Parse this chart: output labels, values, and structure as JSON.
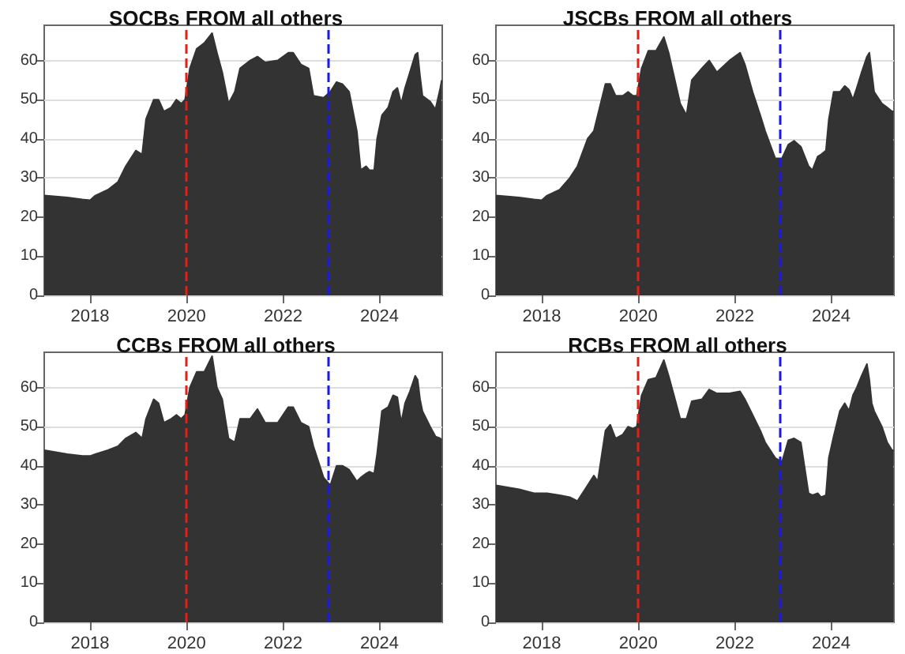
{
  "chart_data": [
    {
      "type": "area",
      "title": "SOCBs FROM all others",
      "color": "#333333",
      "xlim": [
        2017.05,
        2025.3
      ],
      "ylim": [
        0,
        69
      ],
      "xticks": [
        2018,
        2020,
        2022,
        2024
      ],
      "yticks": [
        0,
        10,
        20,
        30,
        40,
        50,
        60
      ],
      "grid": "y",
      "ref_lines": [
        {
          "axis": "x",
          "value": 2020,
          "color": "#e0201b",
          "line_style": "dashed"
        },
        {
          "axis": "x",
          "value": 2022.95,
          "color": "#1a1ae6",
          "line_style": "dashed"
        }
      ],
      "x": [
        2017.05,
        2017.53,
        2017.84,
        2018,
        2018.11,
        2018.37,
        2018.58,
        2018.74,
        2018.95,
        2019.08,
        2019.16,
        2019.32,
        2019.42,
        2019.53,
        2019.68,
        2019.79,
        2019.89,
        2019.97,
        2020.07,
        2020.21,
        2020.37,
        2020.53,
        2020.63,
        2020.74,
        2020.87,
        2021.0,
        2021.11,
        2021.32,
        2021.47,
        2021.63,
        2021.89,
        2022.11,
        2022.21,
        2022.37,
        2022.53,
        2022.63,
        2022.84,
        2022.98,
        2023.11,
        2023.23,
        2023.37,
        2023.53,
        2023.61,
        2023.72,
        2023.79,
        2023.89,
        2023.95,
        2024.05,
        2024.18,
        2024.28,
        2024.37,
        2024.45,
        2024.53,
        2024.63,
        2024.74,
        2024.79,
        2024.84,
        2024.89,
        2025.05,
        2025.16,
        2025.26,
        2025.29
      ],
      "values": [
        25.5,
        25,
        24.5,
        24.3,
        25.5,
        27,
        29,
        33,
        37,
        36,
        45,
        50,
        50,
        47,
        48,
        50,
        49,
        50,
        58,
        63,
        64.5,
        67,
        62,
        57,
        49,
        52,
        58,
        60,
        61,
        59.5,
        60,
        62,
        62,
        59,
        58,
        51,
        50.5,
        52,
        54.5,
        54,
        52,
        42,
        32,
        33,
        32,
        32,
        40,
        46,
        48,
        52,
        53,
        49,
        53,
        57,
        61.5,
        62,
        56,
        51,
        49.5,
        47.5,
        53,
        55
      ]
    },
    {
      "type": "area",
      "title": "JSCBs FROM all others",
      "color": "#333333",
      "xlim": [
        2017.05,
        2025.3
      ],
      "ylim": [
        0,
        69
      ],
      "xticks": [
        2018,
        2020,
        2022,
        2024
      ],
      "yticks": [
        0,
        10,
        20,
        30,
        40,
        50,
        60
      ],
      "grid": "y",
      "ref_lines": [
        {
          "axis": "x",
          "value": 2020,
          "color": "#e0201b",
          "line_style": "dashed"
        },
        {
          "axis": "x",
          "value": 2022.95,
          "color": "#1a1ae6",
          "line_style": "dashed"
        }
      ],
      "x": [
        2017.05,
        2017.53,
        2017.84,
        2018,
        2018.11,
        2018.37,
        2018.58,
        2018.74,
        2018.95,
        2019.08,
        2019.16,
        2019.32,
        2019.42,
        2019.53,
        2019.68,
        2019.79,
        2019.89,
        2019.97,
        2020.07,
        2020.21,
        2020.37,
        2020.53,
        2020.63,
        2020.74,
        2020.87,
        2021.0,
        2021.11,
        2021.32,
        2021.47,
        2021.63,
        2021.89,
        2022.11,
        2022.21,
        2022.37,
        2022.53,
        2022.63,
        2022.84,
        2022.98,
        2023.11,
        2023.23,
        2023.37,
        2023.53,
        2023.61,
        2023.72,
        2023.79,
        2023.89,
        2023.95,
        2024.05,
        2024.18,
        2024.28,
        2024.37,
        2024.45,
        2024.53,
        2024.63,
        2024.74,
        2024.79,
        2024.84,
        2024.89,
        2025.05,
        2025.16,
        2025.26,
        2025.29
      ],
      "values": [
        25.5,
        25,
        24.5,
        24.3,
        25.5,
        27,
        30,
        33,
        40,
        42,
        46,
        54,
        54,
        51,
        51,
        52,
        51,
        51,
        58,
        62.5,
        62.5,
        66,
        62,
        56,
        49,
        46,
        55,
        58,
        60,
        57,
        60,
        62,
        59,
        52,
        46,
        42,
        35,
        35,
        38.5,
        39.5,
        38,
        33,
        32,
        35.5,
        36,
        37,
        45,
        52,
        52,
        53.5,
        52.5,
        50,
        53,
        57,
        61,
        62,
        57,
        52,
        49,
        48,
        47,
        47
      ]
    },
    {
      "type": "area",
      "title": "CCBs FROM all others",
      "color": "#333333",
      "xlim": [
        2017.05,
        2025.3
      ],
      "ylim": [
        0,
        69
      ],
      "xticks": [
        2018,
        2020,
        2022,
        2024
      ],
      "yticks": [
        0,
        10,
        20,
        30,
        40,
        50,
        60
      ],
      "grid": "y",
      "ref_lines": [
        {
          "axis": "x",
          "value": 2020,
          "color": "#e0201b",
          "line_style": "dashed"
        },
        {
          "axis": "x",
          "value": 2022.95,
          "color": "#1a1ae6",
          "line_style": "dashed"
        }
      ],
      "x": [
        2017.05,
        2017.53,
        2017.84,
        2018,
        2018.11,
        2018.37,
        2018.58,
        2018.74,
        2018.95,
        2019.08,
        2019.16,
        2019.32,
        2019.42,
        2019.53,
        2019.68,
        2019.79,
        2019.89,
        2019.97,
        2020.07,
        2020.21,
        2020.37,
        2020.53,
        2020.63,
        2020.74,
        2020.87,
        2021.0,
        2021.11,
        2021.32,
        2021.47,
        2021.63,
        2021.89,
        2022.11,
        2022.21,
        2022.37,
        2022.53,
        2022.63,
        2022.84,
        2022.98,
        2023.11,
        2023.23,
        2023.37,
        2023.53,
        2023.61,
        2023.72,
        2023.79,
        2023.89,
        2023.95,
        2024.05,
        2024.18,
        2024.28,
        2024.37,
        2024.45,
        2024.53,
        2024.63,
        2024.74,
        2024.79,
        2024.84,
        2024.89,
        2025.05,
        2025.16,
        2025.26,
        2025.29
      ],
      "values": [
        44,
        43,
        42.5,
        42.5,
        43,
        44,
        45,
        47,
        48.5,
        47,
        52,
        57,
        56,
        51,
        52,
        53,
        52,
        53,
        60,
        64,
        64,
        68,
        60,
        57,
        47,
        46,
        52,
        52,
        54.5,
        51,
        51,
        55,
        55,
        51,
        50,
        45,
        37,
        35,
        40,
        40,
        39,
        36,
        37,
        38,
        38.5,
        38,
        43,
        54,
        55,
        58,
        57.5,
        51,
        56,
        59,
        63,
        62,
        57,
        54,
        50,
        47.5,
        47,
        46.5
      ]
    },
    {
      "type": "area",
      "title": "RCBs FROM all others",
      "color": "#333333",
      "xlim": [
        2017.05,
        2025.3
      ],
      "ylim": [
        0,
        69
      ],
      "xticks": [
        2018,
        2020,
        2022,
        2024
      ],
      "yticks": [
        0,
        10,
        20,
        30,
        40,
        50,
        60
      ],
      "grid": "y",
      "ref_lines": [
        {
          "axis": "x",
          "value": 2020,
          "color": "#e0201b",
          "line_style": "dashed"
        },
        {
          "axis": "x",
          "value": 2022.95,
          "color": "#1a1ae6",
          "line_style": "dashed"
        }
      ],
      "x": [
        2017.05,
        2017.53,
        2017.84,
        2018,
        2018.11,
        2018.37,
        2018.58,
        2018.74,
        2018.95,
        2019.08,
        2019.16,
        2019.32,
        2019.42,
        2019.53,
        2019.68,
        2019.79,
        2019.89,
        2019.97,
        2020.07,
        2020.21,
        2020.37,
        2020.53,
        2020.63,
        2020.74,
        2020.87,
        2021.0,
        2021.11,
        2021.32,
        2021.47,
        2021.63,
        2021.89,
        2022.11,
        2022.21,
        2022.37,
        2022.53,
        2022.63,
        2022.84,
        2022.98,
        2023.11,
        2023.23,
        2023.37,
        2023.53,
        2023.61,
        2023.72,
        2023.79,
        2023.89,
        2023.95,
        2024.05,
        2024.18,
        2024.28,
        2024.37,
        2024.45,
        2024.53,
        2024.63,
        2024.74,
        2024.79,
        2024.84,
        2024.89,
        2025.05,
        2025.16,
        2025.26,
        2025.29
      ],
      "values": [
        35,
        34,
        33,
        33,
        33,
        32.5,
        32,
        31,
        35,
        37.5,
        36,
        49,
        50.5,
        47,
        48,
        50,
        49.5,
        50,
        58,
        62,
        62.5,
        67,
        63,
        58,
        52,
        52,
        56.5,
        57,
        59.5,
        58.5,
        58.5,
        59,
        57,
        53,
        49,
        46,
        42,
        41,
        46.5,
        47,
        46,
        33,
        32.5,
        33,
        32,
        32.5,
        42,
        47.5,
        54,
        56,
        54,
        58,
        60,
        63,
        66,
        62,
        56,
        54,
        50,
        46,
        44,
        44
      ]
    }
  ]
}
